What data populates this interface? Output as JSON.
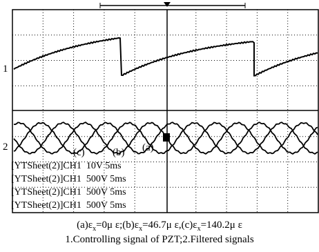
{
  "screen": {
    "channel_markers": [
      "1",
      "2"
    ],
    "trace_labels": [
      "(c)",
      "(b)",
      "(a)"
    ],
    "channel_settings": [
      "[YTSheet(2)]CH1  10V 5ms",
      "[YTSheet(2)]CH1  500V 5ms",
      "[YTSheet(2)]CH1  500V 5ms",
      "[YTSheet(2)]CH1  500V 5ms"
    ]
  },
  "caption": {
    "line1": [
      "(a)ε",
      "x",
      "=0μ ε;(b)ε",
      "x",
      "=46.7μ ε,(c)ε",
      "x",
      "=140.2μ ε"
    ],
    "line2": "1.Controlling signal of PZT;2.Filtered signals"
  }
}
